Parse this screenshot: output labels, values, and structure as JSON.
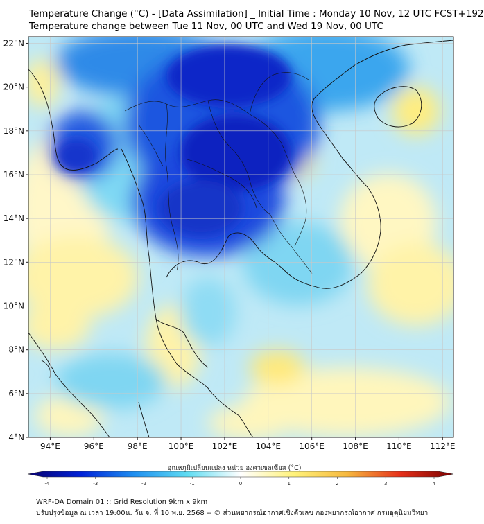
{
  "title_line1": "Temperature Change (°C) - [Data Assimilation] _ Initial Time : Monday 10 Nov, 12 UTC FCST+192",
  "title_line2": "Temperature change between Tue 11 Nov, 00 UTC and Wed 19 Nov, 00 UTC",
  "lat_labels": [
    "22°N",
    "20°N",
    "18°N",
    "16°N",
    "14°N",
    "12°N",
    "10°N",
    "8°N",
    "6°N",
    "4°N"
  ],
  "lon_labels": [
    "94°E",
    "96°E",
    "98°E",
    "100°E",
    "102°E",
    "104°E",
    "106°E",
    "108°E",
    "110°E",
    "112°E"
  ],
  "lat_values": [
    22,
    20,
    18,
    16,
    14,
    12,
    10,
    8,
    6,
    4
  ],
  "lon_values": [
    94,
    96,
    98,
    100,
    102,
    104,
    106,
    108,
    110,
    112
  ],
  "colorbar": {
    "label": "อุณหภูมิเปลี่ยนแปลง หน่วย องศาเซลเซียส (°C)",
    "ticks": [
      "-4",
      "-3",
      "-2",
      "-1",
      "0",
      "1",
      "2",
      "3",
      "4"
    ],
    "tick_values": [
      -4,
      -3,
      -2,
      -1,
      0,
      1,
      2,
      3,
      4
    ],
    "colors": [
      "#08006e",
      "#0022d8",
      "#1f8ff0",
      "#5fdcf2",
      "#ffffff",
      "#fff27a",
      "#f6b83e",
      "#e6301a",
      "#7a0000"
    ]
  },
  "footer_line1": "WRF-DA Domain 01 :: Grid Resolution 9km x 9km",
  "footer_line2": "ปรับปรุงข้อมูล ณ เวลา 19:00น. วัน จ. ที่ 10 พ.ย. 2568 -- © ส่วนพยากรณ์อากาศเชิงตัวเลข กองพยากรณ์อากาศ กรมอุตุนิยมวิทยา"
}
